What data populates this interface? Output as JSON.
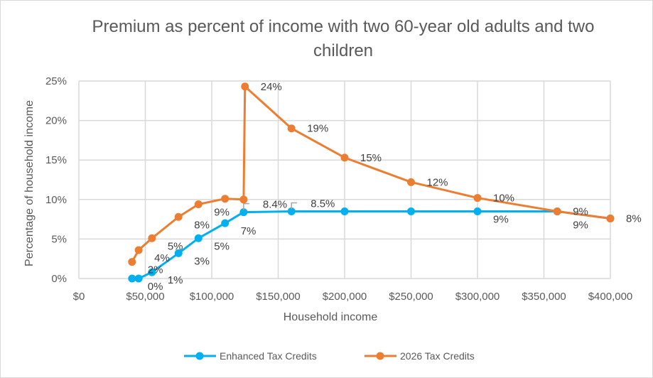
{
  "chart_data": {
    "type": "line",
    "title": "Premium as percent of income with two 60-year old adults and two children",
    "xlabel": "Household income",
    "ylabel": "Percentage of household income",
    "xlim": [
      0,
      400000
    ],
    "ylim": [
      0,
      25
    ],
    "x_ticks": [
      "$0",
      "$50,000",
      "$100,000",
      "$150,000",
      "$200,000",
      "$250,000",
      "$300,000",
      "$350,000",
      "$400,000"
    ],
    "y_ticks": [
      "0%",
      "5%",
      "10%",
      "15%",
      "20%",
      "25%"
    ],
    "grid": true,
    "legend": "bottom",
    "series": [
      {
        "name": "Enhanced Tax Credits",
        "color": "#00b0f0",
        "x": [
          40000,
          45000,
          55000,
          75000,
          90000,
          110000,
          124000,
          160000,
          200000,
          250000,
          300000,
          360000,
          400000
        ],
        "y": [
          0,
          0,
          0.8,
          3.2,
          5.1,
          7.0,
          8.4,
          8.5,
          8.5,
          8.5,
          8.5,
          8.5,
          7.6
        ],
        "labels": [
          "0%",
          null,
          "1%",
          "3%",
          "5%",
          "7%",
          "8.4%",
          "8.5%",
          null,
          null,
          "9%",
          "9%",
          null
        ]
      },
      {
        "name": "2026 Tax Credits",
        "color": "#ed7d31",
        "x": [
          40000,
          45000,
          55000,
          75000,
          90000,
          110000,
          124000,
          125000,
          160000,
          200000,
          250000,
          300000,
          360000,
          400000
        ],
        "y": [
          2.1,
          3.6,
          5.1,
          7.8,
          9.4,
          10.1,
          10.0,
          24.3,
          19.0,
          15.3,
          12.2,
          10.2,
          8.5,
          7.6
        ],
        "labels": [
          "2%",
          "4%",
          "5%",
          "8%",
          "9%",
          null,
          null,
          "24%",
          "19%",
          "15%",
          "12%",
          "10%",
          "9%",
          "8%"
        ]
      }
    ]
  }
}
